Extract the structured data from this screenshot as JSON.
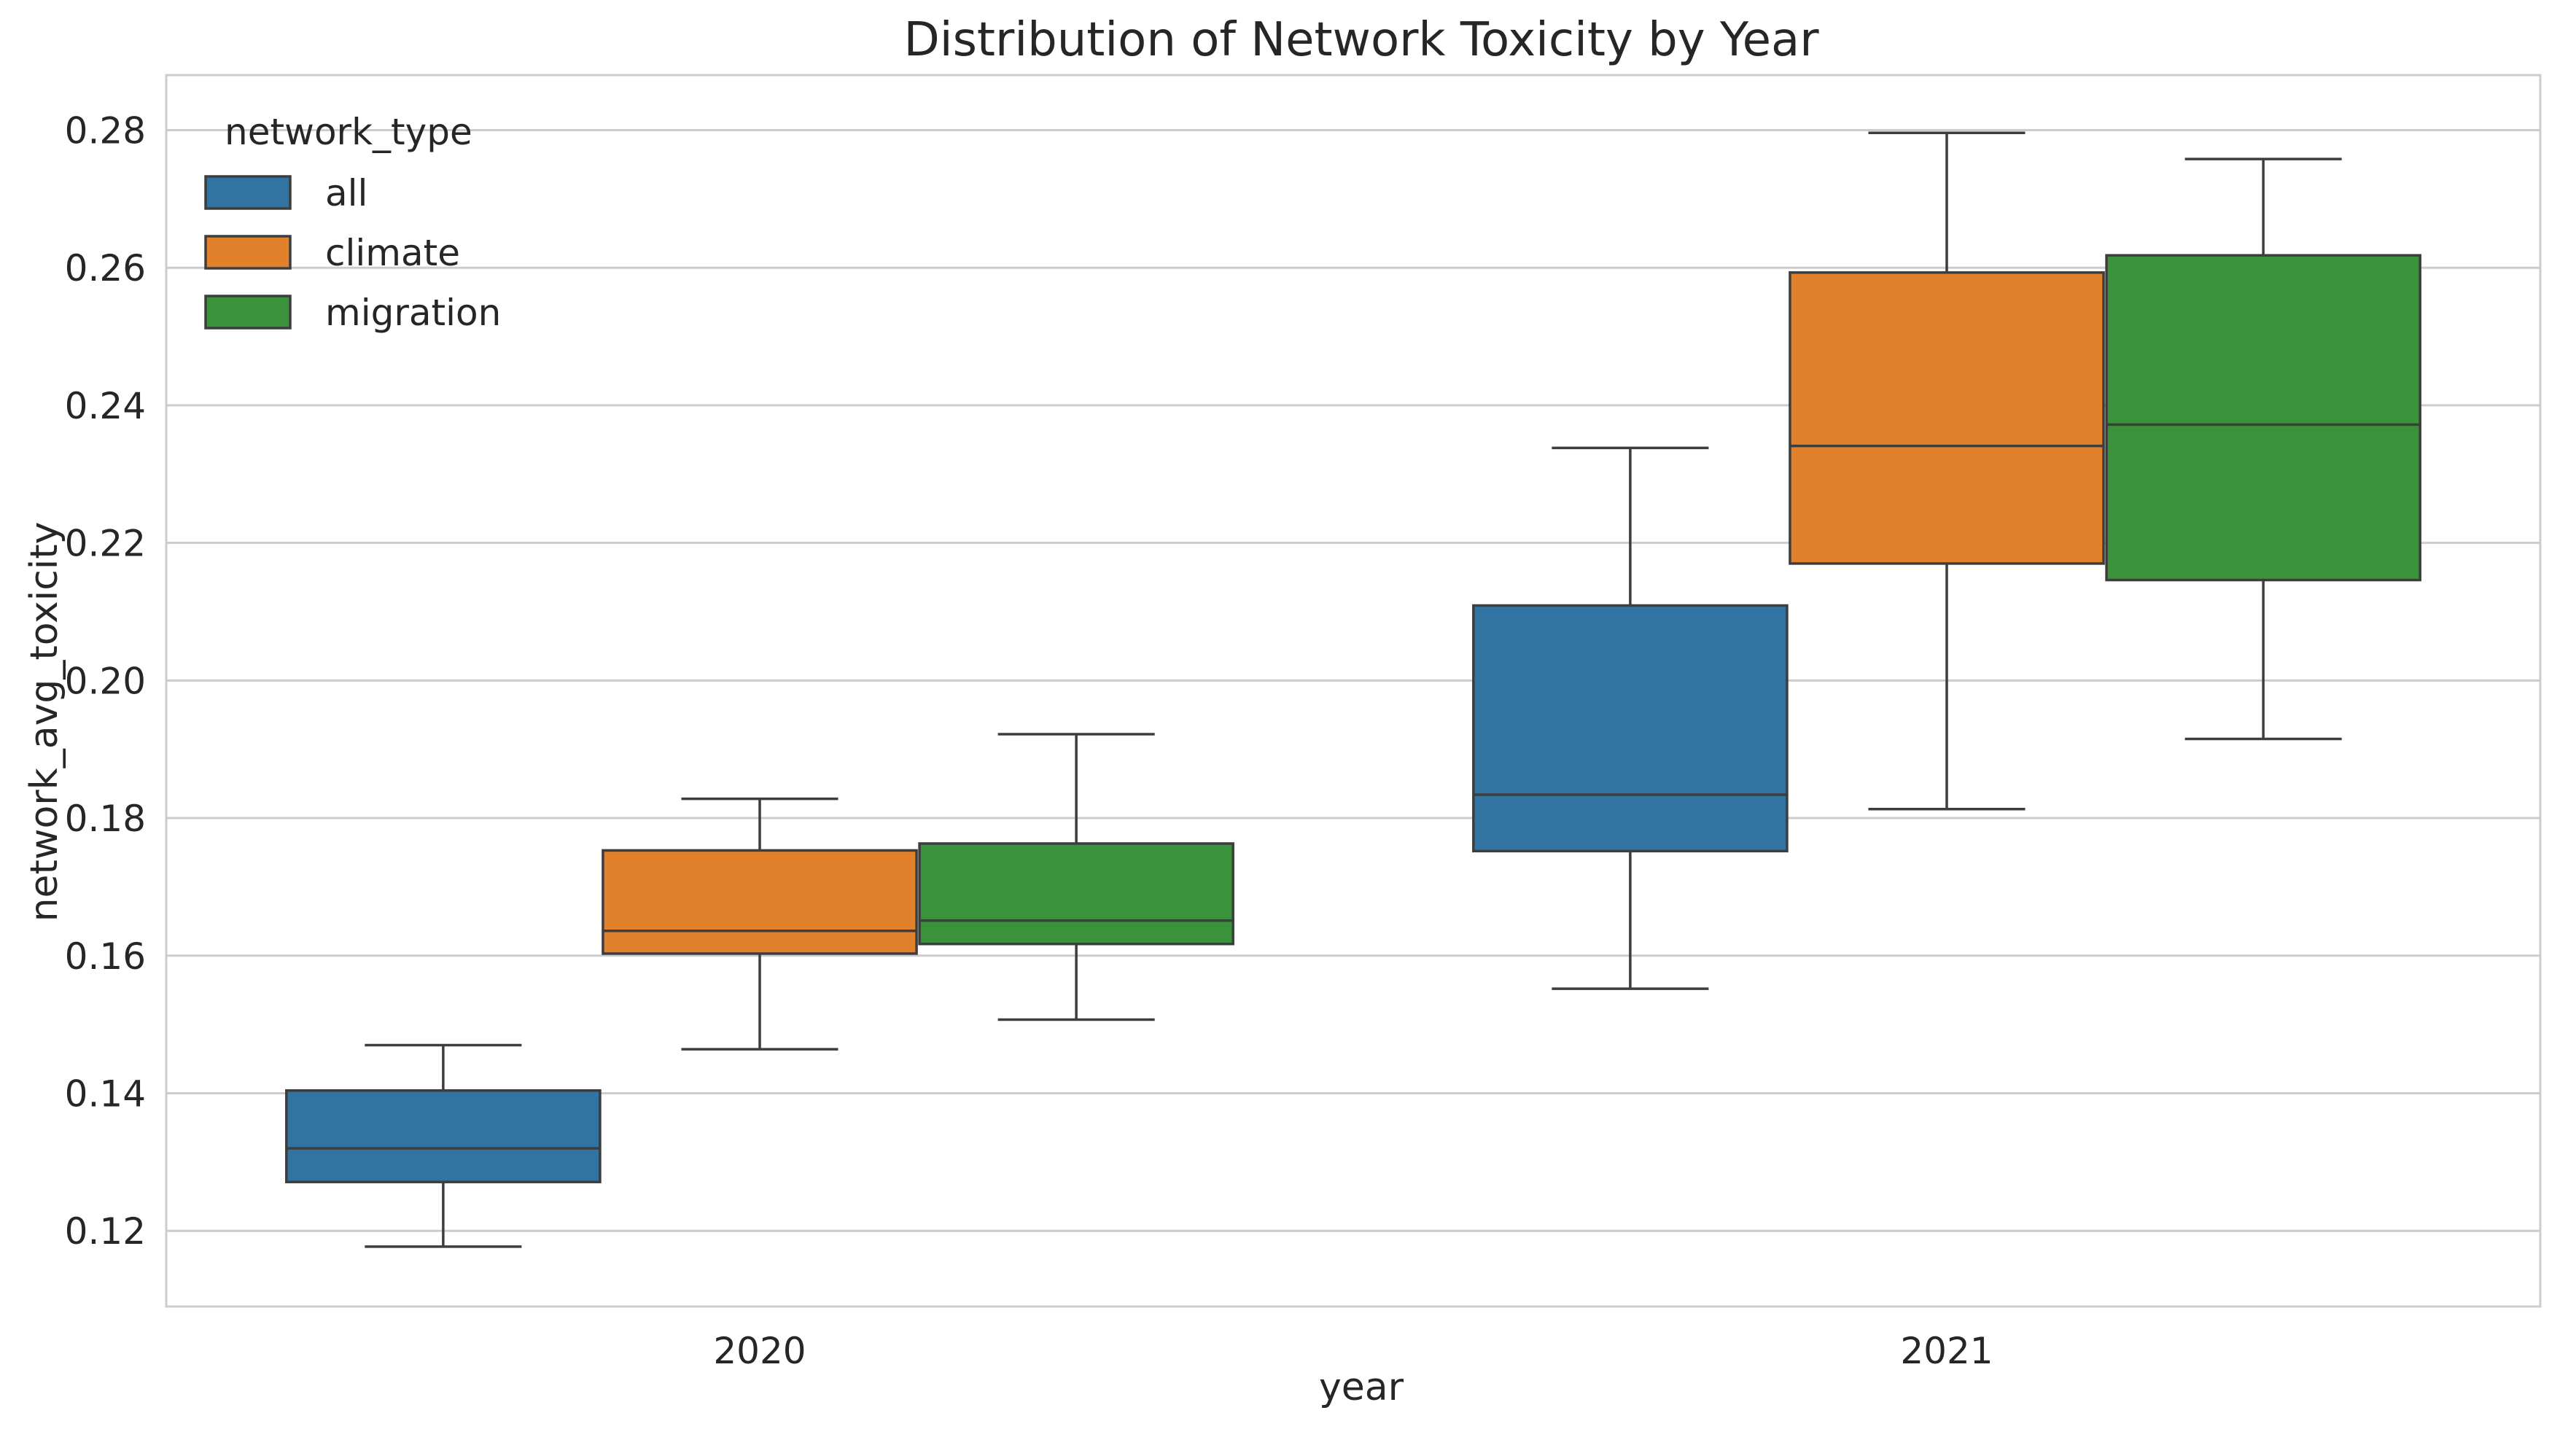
{
  "chart_data": {
    "type": "box",
    "title": "Distribution of Network Toxicity by Year",
    "xlabel": "year",
    "ylabel": "network_avg_toxicity",
    "categories": [
      "2020",
      "2021"
    ],
    "ylim": [
      0.109,
      0.288
    ],
    "yticks": [
      "0.12",
      "0.14",
      "0.16",
      "0.18",
      "0.20",
      "0.22",
      "0.24",
      "0.26",
      "0.28"
    ],
    "grid": "horizontal",
    "legend": {
      "title": "network_type",
      "placement": "top-left"
    },
    "series": [
      {
        "name": "all",
        "color": "#3274a1",
        "boxes": [
          {
            "category": "2020",
            "whislo": 0.1177,
            "q1": 0.1271,
            "med": 0.132,
            "q3": 0.1404,
            "whishi": 0.147
          },
          {
            "category": "2021",
            "whislo": 0.1552,
            "q1": 0.1752,
            "med": 0.1834,
            "q3": 0.2109,
            "whishi": 0.2338
          }
        ]
      },
      {
        "name": "climate",
        "color": "#e1812c",
        "boxes": [
          {
            "category": "2020",
            "whislo": 0.1464,
            "q1": 0.1603,
            "med": 0.1636,
            "q3": 0.1753,
            "whishi": 0.1828
          },
          {
            "category": "2021",
            "whislo": 0.1813,
            "q1": 0.217,
            "med": 0.2341,
            "q3": 0.2593,
            "whishi": 0.2796
          }
        ]
      },
      {
        "name": "migration",
        "color": "#3a923a",
        "boxes": [
          {
            "category": "2020",
            "whislo": 0.1507,
            "q1": 0.1617,
            "med": 0.1651,
            "q3": 0.1763,
            "whishi": 0.1922
          },
          {
            "category": "2021",
            "whislo": 0.1915,
            "q1": 0.2146,
            "med": 0.2372,
            "q3": 0.2618,
            "whishi": 0.2758
          }
        ]
      }
    ]
  }
}
